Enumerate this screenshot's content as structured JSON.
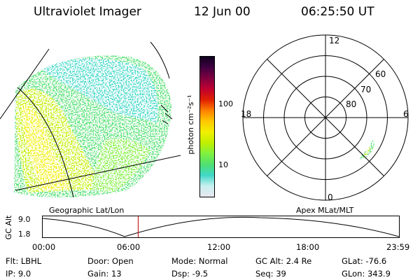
{
  "header": {
    "instrument": "Ultraviolet Imager",
    "date": "12 Jun 00",
    "time": "06:25:50 UT"
  },
  "colorbar": {
    "unit_label": "photon cm⁻²s⁻¹",
    "ticks": [
      {
        "label": "100",
        "value": 100
      },
      {
        "label": "10",
        "value": 10
      }
    ],
    "colors": [
      "#e8e8f0",
      "#c8f0f0",
      "#40d8c8",
      "#50e070",
      "#80f040",
      "#c0f000",
      "#f0f000",
      "#ffc800",
      "#ff8000",
      "#e02000",
      "#c00030",
      "#800040",
      "#400040",
      "#100020"
    ]
  },
  "geo_panel": {
    "label": "Geographic Lat/Lon"
  },
  "polar_panel": {
    "label": "Apex MLat/MLT",
    "mlt_labels": {
      "top": "12",
      "left": "18",
      "right": "6",
      "bottom": "0"
    },
    "lat_labels": [
      {
        "label": "60",
        "value": 60
      },
      {
        "label": "70",
        "value": 70
      },
      {
        "label": "80",
        "value": 80
      }
    ]
  },
  "altitude_plot": {
    "y_axis_label": "GC Alt",
    "y_ticks": [
      "9.0",
      "1.8"
    ],
    "x_ticks": [
      "00:00",
      "06:00",
      "12:00",
      "18:00",
      "23:59"
    ],
    "current_time_fraction": 0.268
  },
  "footer": {
    "flt": "Flt: LBHL",
    "ip": "IP:  9.0",
    "door": "Door: Open",
    "gain": "Gain: 13",
    "mode": "Mode: Normal",
    "dsp": "Dsp:   -9.5",
    "gc_alt": "GC Alt: 2.4 Re",
    "seq": "Seq: 39",
    "glat": "GLat: -76.6",
    "glon": "GLon: 343.9"
  }
}
